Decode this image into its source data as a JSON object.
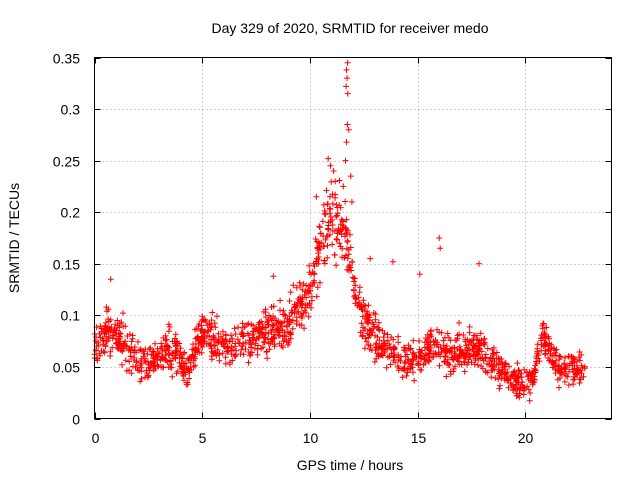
{
  "chart_data": {
    "type": "scatter",
    "title": "Day 329 of 2020, SRMTID for receiver medo",
    "xlabel": "GPS time / hours",
    "ylabel": "SRMTID / TECUs",
    "xlim": [
      0,
      24
    ],
    "ylim": [
      0,
      0.35
    ],
    "xticks": [
      0,
      5,
      10,
      15,
      20
    ],
    "xtick_labels": [
      "0",
      "5",
      "10",
      "15",
      "20"
    ],
    "yticks": [
      0,
      0.05,
      0.1,
      0.15,
      0.2,
      0.25,
      0.3,
      0.35
    ],
    "ytick_labels": [
      "0",
      "0.05",
      "0.1",
      "0.15",
      "0.2",
      "0.25",
      "0.3",
      "0.35"
    ],
    "grid": true,
    "marker": "+",
    "color": "#ff0000",
    "series": [
      {
        "name": "SRMTID",
        "x_range": [
          0,
          22.8
        ],
        "trend": [
          [
            0.0,
            0.072
          ],
          [
            0.7,
            0.085
          ],
          [
            1.5,
            0.07
          ],
          [
            2.5,
            0.05
          ],
          [
            3.5,
            0.07
          ],
          [
            4.3,
            0.045
          ],
          [
            5.0,
            0.085
          ],
          [
            6.0,
            0.07
          ],
          [
            7.0,
            0.075
          ],
          [
            8.0,
            0.085
          ],
          [
            9.0,
            0.09
          ],
          [
            10.0,
            0.12
          ],
          [
            10.7,
            0.19
          ],
          [
            11.2,
            0.19
          ],
          [
            11.7,
            0.175
          ],
          [
            12.2,
            0.11
          ],
          [
            13.0,
            0.08
          ],
          [
            14.0,
            0.06
          ],
          [
            15.0,
            0.055
          ],
          [
            15.7,
            0.075
          ],
          [
            16.5,
            0.06
          ],
          [
            17.5,
            0.07
          ],
          [
            18.5,
            0.055
          ],
          [
            19.5,
            0.035
          ],
          [
            20.3,
            0.035
          ],
          [
            20.8,
            0.08
          ],
          [
            21.5,
            0.05
          ],
          [
            22.8,
            0.045
          ]
        ],
        "outliers": [
          [
            11.75,
            0.345
          ],
          [
            11.7,
            0.338
          ],
          [
            11.72,
            0.33
          ],
          [
            11.68,
            0.322
          ],
          [
            11.76,
            0.315
          ],
          [
            11.74,
            0.285
          ],
          [
            11.8,
            0.28
          ],
          [
            11.7,
            0.268
          ],
          [
            10.85,
            0.252
          ],
          [
            10.95,
            0.245
          ],
          [
            11.65,
            0.25
          ],
          [
            11.1,
            0.24
          ],
          [
            11.9,
            0.235
          ],
          [
            11.55,
            0.225
          ],
          [
            10.3,
            0.215
          ],
          [
            11.95,
            0.21
          ],
          [
            16.0,
            0.175
          ],
          [
            16.05,
            0.165
          ],
          [
            17.85,
            0.15
          ],
          [
            13.85,
            0.152
          ],
          [
            12.8,
            0.155
          ],
          [
            0.75,
            0.135
          ],
          [
            8.3,
            0.138
          ],
          [
            15.1,
            0.14
          ]
        ],
        "n_points": 1600
      }
    ]
  }
}
